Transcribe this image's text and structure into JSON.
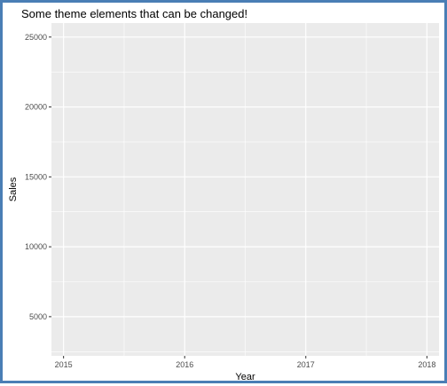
{
  "chart_data": {
    "type": "line",
    "title": "Some theme elements that can be changed!",
    "xlabel": "Year",
    "ylabel": "Sales",
    "x_ticks": [
      "2015",
      "2016",
      "2017",
      "2018"
    ],
    "y_ticks": [
      "5000",
      "10000",
      "15000",
      "20000",
      "25000"
    ],
    "xlim": [
      2014.9,
      2018.1
    ],
    "ylim": [
      2200,
      26000
    ],
    "grid": true,
    "series": [],
    "colors": {
      "panel_background": "#ebebeb",
      "grid_line": "#ffffff",
      "frame_border": "#4a7eb5",
      "tick_text": "#4d4d4d"
    }
  }
}
